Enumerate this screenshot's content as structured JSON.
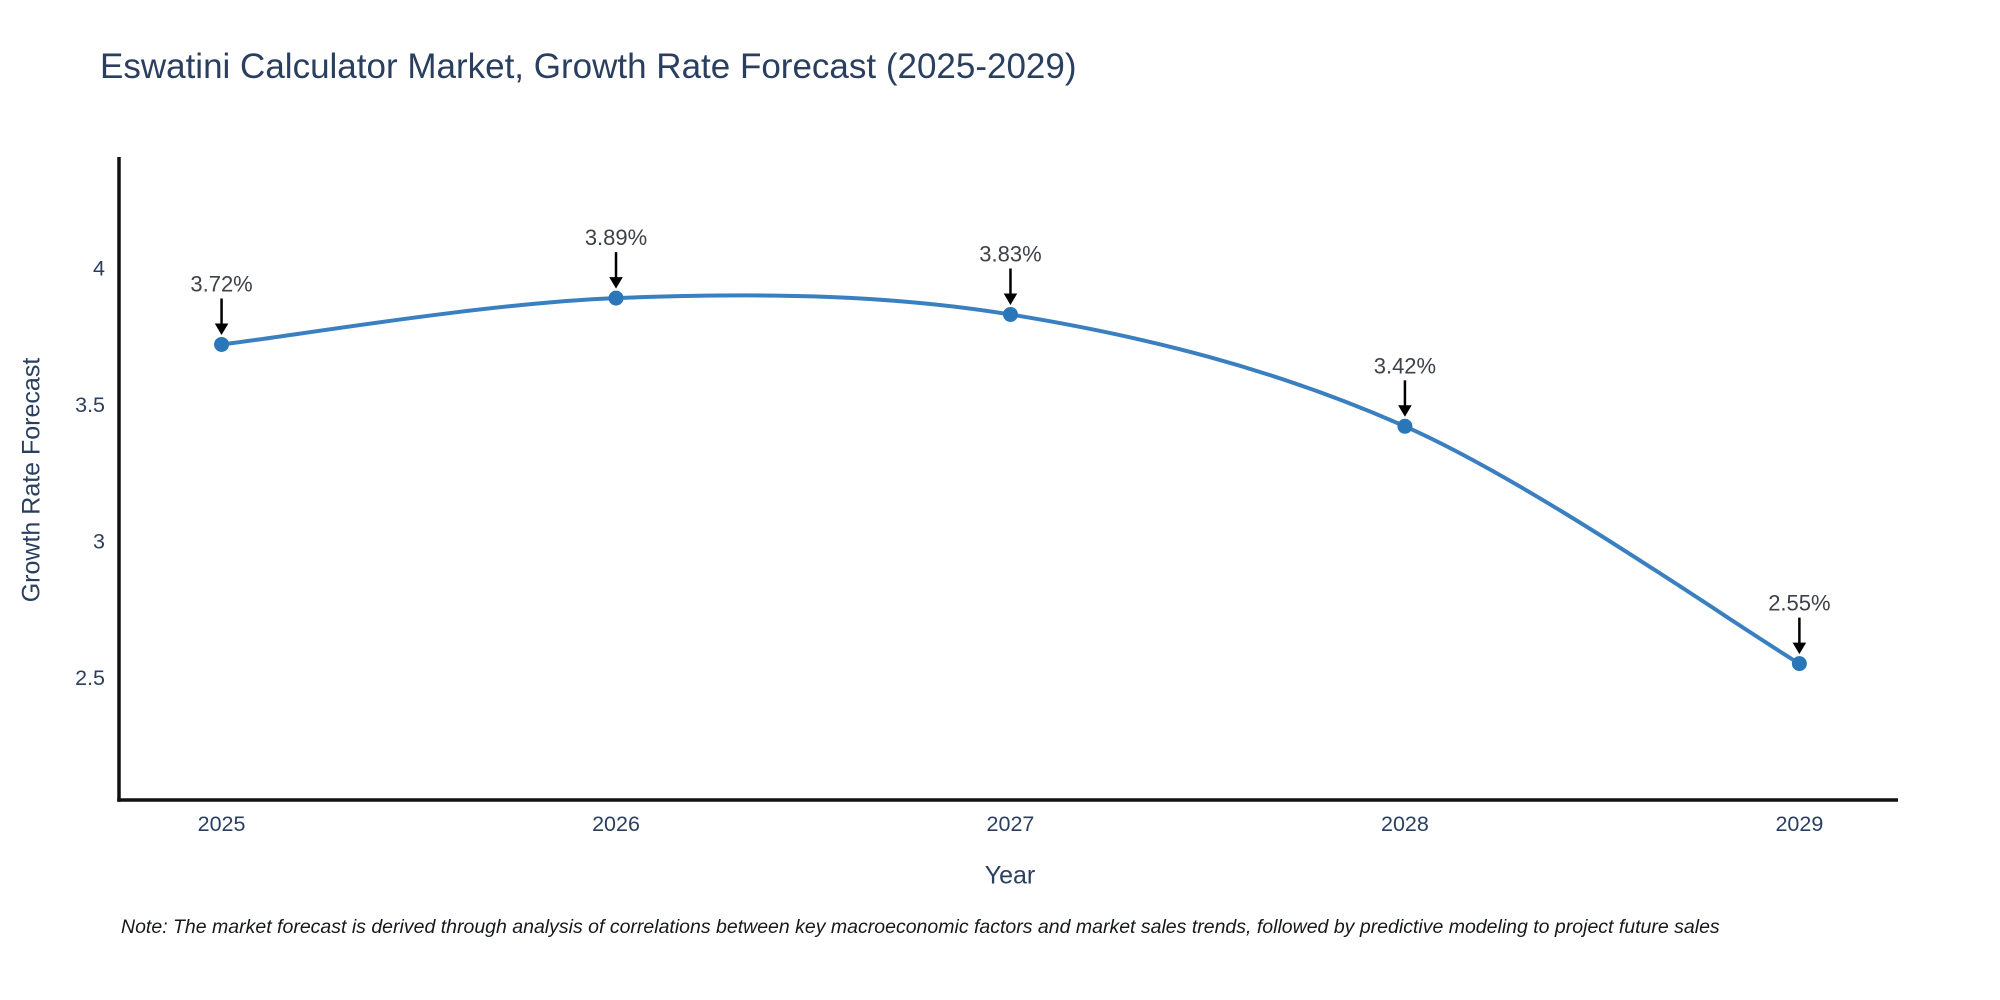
{
  "title": "Eswatini Calculator Market, Growth Rate Forecast (2025-2029)",
  "footnote": "Note: The market forecast is derived through analysis of correlations between key macroeconomic factors and market sales trends, followed by predictive modeling to project future sales",
  "chart_data": {
    "type": "line",
    "title": "Eswatini Calculator Market, Growth Rate Forecast (2025-2029)",
    "xlabel": "Year",
    "ylabel": "Growth Rate Forecast",
    "x": [
      2025,
      2026,
      2027,
      2028,
      2029
    ],
    "values": [
      3.72,
      3.89,
      3.83,
      3.42,
      2.55
    ],
    "point_labels": [
      "3.72%",
      "3.89%",
      "3.83%",
      "3.42%",
      "2.55%"
    ],
    "x_tick_labels": [
      "2025",
      "2026",
      "2027",
      "2028",
      "2029"
    ],
    "y_ticks": [
      4,
      3.5,
      3,
      2.5
    ],
    "y_tick_labels": [
      "4",
      "3.5",
      "3",
      "2.5"
    ],
    "xlim": [
      2024.74,
      2029.25
    ],
    "ylim": [
      2.05,
      4.4
    ],
    "grid": false,
    "legend": "none",
    "line_shape": "spline",
    "colors": {
      "line": "#3a80c1",
      "marker": "#2b76b8",
      "axis": "#111111",
      "tick_text": "#2a3f5f",
      "annotation_text": "#3d4148",
      "arrow": "#000000",
      "title_text": "#2a3f5f"
    }
  }
}
